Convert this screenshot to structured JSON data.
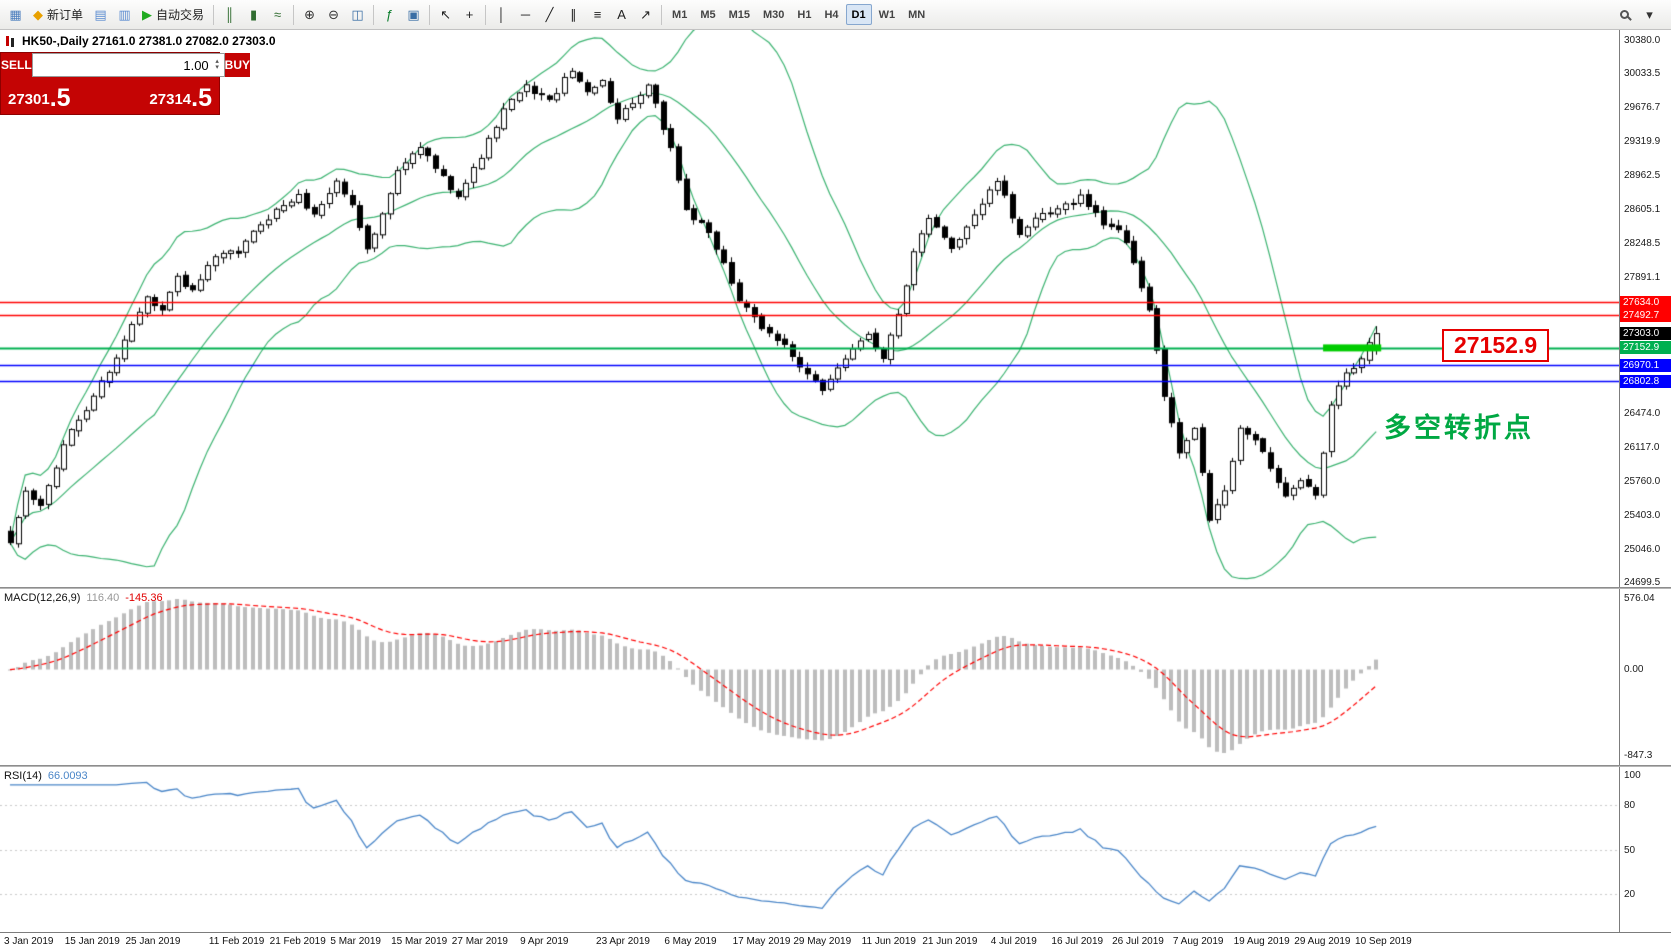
{
  "colors": {
    "toolbar_bg": "#f0efee",
    "bollinger": "#3cb371",
    "line_red": "#ff0000",
    "line_green": "#00b050",
    "line_blue": "#0000ff",
    "macd_hist": "#bdbdbd",
    "macd_signal": "#ff0000",
    "rsi_line": "#4a86c8",
    "trade_panel_bg": "#c40404"
  },
  "toolbar": {
    "items": [
      {
        "t": "icon",
        "name": "app-icon",
        "glyph": "▦",
        "color": "#4a7dbd"
      },
      {
        "t": "btn",
        "name": "new-order-button",
        "glyph": "◆",
        "color": "#e8a000",
        "label": "新订单"
      },
      {
        "t": "icon",
        "name": "chart-window-icon",
        "glyph": "▤",
        "color": "#5b8bd0"
      },
      {
        "t": "icon",
        "name": "profile-icon",
        "glyph": "▥",
        "color": "#5b8bd0"
      },
      {
        "t": "btn",
        "name": "auto-trading-button",
        "glyph": "▶",
        "color": "#1faa1f",
        "label": "自动交易"
      },
      {
        "t": "sep"
      },
      {
        "t": "icon",
        "name": "bar-chart-icon",
        "glyph": "║",
        "color": "#2f6b2f"
      },
      {
        "t": "icon",
        "name": "candlestick-icon",
        "glyph": "▮",
        "color": "#2f6b2f"
      },
      {
        "t": "icon",
        "name": "line-chart-icon",
        "glyph": "≈",
        "color": "#2f6b2f"
      },
      {
        "t": "sep"
      },
      {
        "t": "icon",
        "name": "zoom-in-icon",
        "glyph": "⊕",
        "color": "#333333"
      },
      {
        "t": "icon",
        "name": "zoom-out-icon",
        "glyph": "⊖",
        "color": "#333333"
      },
      {
        "t": "icon",
        "name": "tile-windows-icon",
        "glyph": "◫",
        "color": "#3a6ea5"
      },
      {
        "t": "sep"
      },
      {
        "t": "icon",
        "name": "indicators-icon",
        "glyph": "ƒ",
        "color": "#0a7d2c"
      },
      {
        "t": "icon",
        "name": "objects-list-icon",
        "glyph": "▣",
        "color": "#3a6ea5"
      },
      {
        "t": "sep"
      },
      {
        "t": "icon",
        "name": "cursor-icon",
        "glyph": "↖",
        "color": "#222222"
      },
      {
        "t": "icon",
        "name": "crosshair-icon",
        "glyph": "+",
        "color": "#222222"
      },
      {
        "t": "sep"
      },
      {
        "t": "icon",
        "name": "vertical-line-icon",
        "glyph": "│",
        "color": "#222222"
      },
      {
        "t": "icon",
        "name": "horizontal-line-icon",
        "glyph": "─",
        "color": "#222222"
      },
      {
        "t": "icon",
        "name": "trendline-icon",
        "glyph": "╱",
        "color": "#222222"
      },
      {
        "t": "icon",
        "name": "channel-icon",
        "glyph": "∥",
        "color": "#222222"
      },
      {
        "t": "icon",
        "name": "fibonacci-icon",
        "glyph": "≡",
        "color": "#222222"
      },
      {
        "t": "icon",
        "name": "text-icon",
        "glyph": "A",
        "color": "#222222"
      },
      {
        "t": "icon",
        "name": "arrows-icon",
        "glyph": "↗",
        "color": "#222222"
      },
      {
        "t": "sep"
      }
    ],
    "timeframes": [
      "M1",
      "M5",
      "M15",
      "M30",
      "H1",
      "H4",
      "D1",
      "W1",
      "MN"
    ],
    "active_timeframe": "D1",
    "right_items": [
      {
        "name": "search-icon",
        "type": "mag"
      },
      {
        "name": "more-icon",
        "glyph": "▾"
      }
    ]
  },
  "trade_panel": {
    "sell_label": "SELL",
    "buy_label": "BUY",
    "volume": "1.00",
    "sell_price": "27301.5",
    "buy_price": "27314.5"
  },
  "chart": {
    "title_line": "HK50-,Daily  27161.0 27381.0 27082.0 27303.0",
    "symbol": "HK50",
    "timeframe": "Daily",
    "last_candle": {
      "open": 27161.0,
      "high": 27381.0,
      "low": 27082.0,
      "close": 27303.0
    },
    "price_top": 30485,
    "price_bottom": 24647,
    "axis_ticks": [
      "30380.0",
      "30033.5",
      "29676.7",
      "29319.9",
      "28962.5",
      "28605.1",
      "28248.5",
      "27891.1",
      "26474.0",
      "26117.0",
      "25760.0",
      "25403.0",
      "25046.0",
      "24699.5"
    ],
    "price_markers": [
      {
        "value": 27634.0,
        "label": "27634.0",
        "color": "#ff0000"
      },
      {
        "value": 27492.7,
        "label": "27492.7",
        "color": "#ff0000"
      },
      {
        "value": 27303.0,
        "label": "27303.0",
        "color": "#000000"
      },
      {
        "value": 27152.9,
        "label": "27152.9",
        "color": "#00b050"
      },
      {
        "value": 26970.1,
        "label": "26970.1",
        "color": "#0000ff"
      },
      {
        "value": 26802.8,
        "label": "26802.8",
        "color": "#0000ff"
      }
    ],
    "hlines": [
      {
        "value": 27634.0,
        "color": "#ff0000",
        "width": 1.5
      },
      {
        "value": 27492.7,
        "color": "#ff0000",
        "width": 1.5
      },
      {
        "value": 27152.9,
        "color": "#00b050",
        "width": 2
      },
      {
        "value": 26970.1,
        "color": "#0000ff",
        "width": 1.5
      },
      {
        "value": 26802.8,
        "color": "#0000ff",
        "width": 1.5
      }
    ],
    "highlight_segment": {
      "value": 27152.9,
      "start_index": 173,
      "end_index": 180,
      "color": "#00cc00",
      "thickness": 7
    },
    "callout_price": "27152.9",
    "annotation_text": "多空转折点"
  },
  "indicators": {
    "bollinger": {
      "period": 20,
      "deviation": 2
    },
    "macd": {
      "name": "MACD(12,26,9)",
      "main": "116.40",
      "signal": "-145.36",
      "scale_max": "576.04",
      "scale_zero": "0.00",
      "scale_min": "-847.3",
      "params": {
        "fast": 12,
        "slow": 26,
        "signal": 9
      }
    },
    "rsi": {
      "name": "RSI(14)",
      "value": "66.0093",
      "period": 14,
      "levels": [
        80,
        50,
        20
      ],
      "scale_labels": [
        {
          "v": 100,
          "t": "100"
        },
        {
          "v": 80,
          "t": "80"
        },
        {
          "v": 50,
          "t": "50"
        },
        {
          "v": 20,
          "t": "20"
        }
      ]
    }
  },
  "chart_data": {
    "type": "candlestick",
    "symbol": "HK50",
    "timeframe": "Daily",
    "candle_count": 181,
    "close_keypoints": [
      [
        0,
        25100
      ],
      [
        2,
        25650
      ],
      [
        4,
        25500
      ],
      [
        6,
        25900
      ],
      [
        8,
        26300
      ],
      [
        10,
        26500
      ],
      [
        12,
        26800
      ],
      [
        14,
        27050
      ],
      [
        16,
        27400
      ],
      [
        18,
        27700
      ],
      [
        20,
        27550
      ],
      [
        22,
        27900
      ],
      [
        24,
        27750
      ],
      [
        27,
        28100
      ],
      [
        30,
        28150
      ],
      [
        33,
        28450
      ],
      [
        35,
        28600
      ],
      [
        38,
        28750
      ],
      [
        40,
        28550
      ],
      [
        43,
        28900
      ],
      [
        45,
        28650
      ],
      [
        47,
        28200
      ],
      [
        49,
        28550
      ],
      [
        51,
        29000
      ],
      [
        54,
        29250
      ],
      [
        57,
        28950
      ],
      [
        59,
        28750
      ],
      [
        62,
        29150
      ],
      [
        65,
        29650
      ],
      [
        68,
        29900
      ],
      [
        71,
        29750
      ],
      [
        74,
        30050
      ],
      [
        76,
        29850
      ],
      [
        78,
        29950
      ],
      [
        80,
        29550
      ],
      [
        82,
        29700
      ],
      [
        84,
        29900
      ],
      [
        87,
        29250
      ],
      [
        89,
        28600
      ],
      [
        92,
        28350
      ],
      [
        94,
        28050
      ],
      [
        96,
        27650
      ],
      [
        99,
        27350
      ],
      [
        102,
        27200
      ],
      [
        104,
        26950
      ],
      [
        107,
        26700
      ],
      [
        109,
        26950
      ],
      [
        111,
        27150
      ],
      [
        113,
        27300
      ],
      [
        115,
        27050
      ],
      [
        117,
        27500
      ],
      [
        119,
        28150
      ],
      [
        121,
        28500
      ],
      [
        124,
        28200
      ],
      [
        127,
        28550
      ],
      [
        130,
        28900
      ],
      [
        133,
        28350
      ],
      [
        135,
        28500
      ],
      [
        138,
        28600
      ],
      [
        141,
        28750
      ],
      [
        144,
        28450
      ],
      [
        146,
        28400
      ],
      [
        148,
        28050
      ],
      [
        150,
        27550
      ],
      [
        152,
        26650
      ],
      [
        154,
        26050
      ],
      [
        156,
        26300
      ],
      [
        158,
        25350
      ],
      [
        160,
        25650
      ],
      [
        162,
        26300
      ],
      [
        164,
        26200
      ],
      [
        166,
        25900
      ],
      [
        168,
        25600
      ],
      [
        170,
        25750
      ],
      [
        172,
        25600
      ],
      [
        174,
        26550
      ],
      [
        176,
        26900
      ],
      [
        178,
        27050
      ],
      [
        180,
        27303
      ]
    ],
    "x_axis_dates": [
      {
        "label": "3 Jan 2019",
        "i": 0
      },
      {
        "label": "15 Jan 2019",
        "i": 8
      },
      {
        "label": "25 Jan 2019",
        "i": 16
      },
      {
        "label": "11 Feb 2019",
        "i": 27
      },
      {
        "label": "21 Feb 2019",
        "i": 35
      },
      {
        "label": "5 Mar 2019",
        "i": 43
      },
      {
        "label": "15 Mar 2019",
        "i": 51
      },
      {
        "label": "27 Mar 2019",
        "i": 59
      },
      {
        "label": "9 Apr 2019",
        "i": 68
      },
      {
        "label": "23 Apr 2019",
        "i": 78
      },
      {
        "label": "6 May 2019",
        "i": 87
      },
      {
        "label": "17 May 2019",
        "i": 96
      },
      {
        "label": "29 May 2019",
        "i": 104
      },
      {
        "label": "11 Jun 2019",
        "i": 113
      },
      {
        "label": "21 Jun 2019",
        "i": 121
      },
      {
        "label": "4 Jul 2019",
        "i": 130
      },
      {
        "label": "16 Jul 2019",
        "i": 138
      },
      {
        "label": "26 Jul 2019",
        "i": 146
      },
      {
        "label": "7 Aug 2019",
        "i": 154
      },
      {
        "label": "19 Aug 2019",
        "i": 162
      },
      {
        "label": "29 Aug 2019",
        "i": 170
      },
      {
        "label": "10 Sep 2019",
        "i": 178
      }
    ]
  }
}
